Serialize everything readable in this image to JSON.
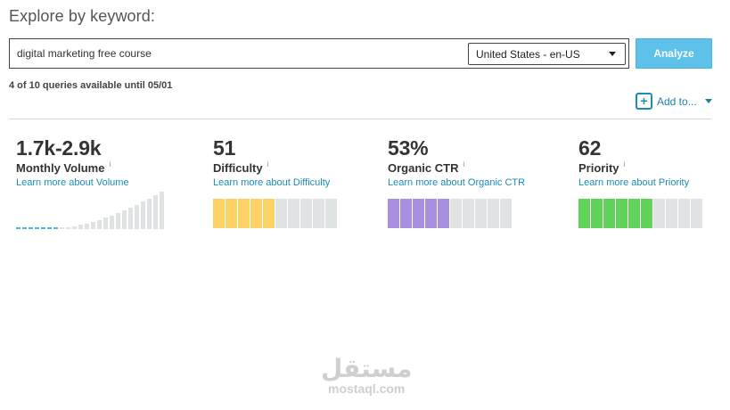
{
  "header": {
    "title": "Explore by keyword:"
  },
  "search": {
    "value": "digital marketing free course",
    "locale": "United States - en-US",
    "analyze_label": "Analyze"
  },
  "quota": "4 of 10 queries available until 05/01",
  "actions": {
    "add_to_label": "Add to...",
    "plus_glyph": "+"
  },
  "metrics": {
    "volume": {
      "value": "1.7k-2.9k",
      "label": "Monthly Volume",
      "link": "Learn more about Volume",
      "info": "i",
      "highlight_color": "#4ab8e3",
      "base_color": "#dfe3e4"
    },
    "difficulty": {
      "value": "51",
      "label": "Difficulty",
      "link": "Learn more about Difficulty",
      "info": "i",
      "fill_segments": 5,
      "total_segments": 10,
      "color": "#fdd166"
    },
    "ctr": {
      "value": "53%",
      "label": "Organic CTR",
      "link": "Learn more about Organic CTR",
      "info": "i",
      "fill_segments": 5,
      "total_segments": 10,
      "color": "#a98fdf"
    },
    "priority": {
      "value": "62",
      "label": "Priority",
      "link": "Learn more about Priority",
      "info": "i",
      "fill_segments": 6,
      "total_segments": 10,
      "color": "#62d35a"
    }
  },
  "volume_chart": {
    "total_bars": 24,
    "highlighted_bars": 7
  },
  "watermark": {
    "arabic": "مستقل",
    "latin": "mostaql.com"
  }
}
